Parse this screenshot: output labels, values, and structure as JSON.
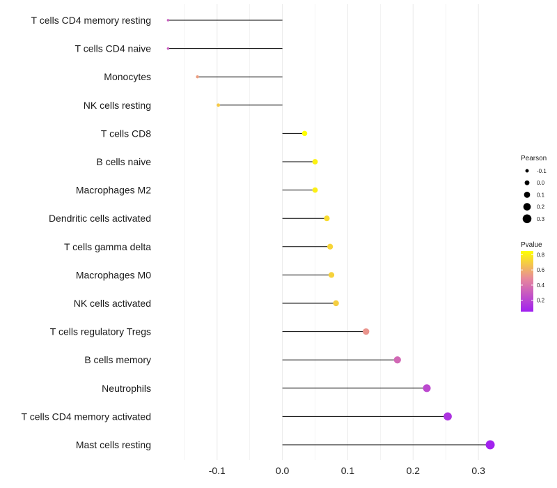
{
  "chart_data": {
    "type": "lollipop",
    "orientation": "horizontal",
    "categories": [
      "T cells CD4 memory resting",
      "T cells CD4 naive",
      "Monocytes",
      "NK cells resting",
      "T cells CD8",
      "B cells naive",
      "Macrophages M2",
      "Dendritic cells activated",
      "T cells gamma delta",
      "Macrophages M0",
      "NK cells activated",
      "T cells regulatory  Tregs ",
      "B cells memory",
      "Neutrophils",
      "T cells CD4 memory activated",
      "Mast cells resting"
    ],
    "pearson": [
      -0.175,
      -0.175,
      -0.13,
      -0.098,
      0.034,
      0.05,
      0.05,
      0.068,
      0.073,
      0.075,
      0.082,
      0.128,
      0.176,
      0.221,
      0.253,
      0.318
    ],
    "pvalue": [
      0.3,
      0.3,
      0.55,
      0.68,
      0.86,
      0.81,
      0.8,
      0.74,
      0.72,
      0.71,
      0.7,
      0.52,
      0.35,
      0.22,
      0.13,
      0.06
    ],
    "xlim": [
      -0.185,
      0.335
    ],
    "x_ticks": [
      -0.1,
      0.0,
      0.1,
      0.2,
      0.3
    ],
    "x_tick_labels": [
      "-0.1",
      "0.0",
      "0.1",
      "0.2",
      "0.3"
    ],
    "xlabel": "",
    "ylabel": "",
    "grid": true,
    "legend_position": "right",
    "size_legend": {
      "title": "Pearson",
      "values": [
        -0.1,
        0.0,
        0.1,
        0.2,
        0.3
      ],
      "labels": [
        "-0.1",
        "0.0",
        "0.1",
        "0.2",
        "0.3"
      ]
    },
    "color_legend": {
      "title": "Pvalue",
      "range": [
        0.05,
        0.85
      ],
      "ticks": [
        0.2,
        0.4,
        0.6,
        0.8
      ],
      "tick_labels": [
        "0.2",
        "0.4",
        "0.6",
        "0.8"
      ],
      "low_color": "#a020f0",
      "mid_color": "#e88a9a",
      "high_color": "#ffff00"
    },
    "stem_color": "#000000",
    "grid_color": "#ebebeb"
  }
}
